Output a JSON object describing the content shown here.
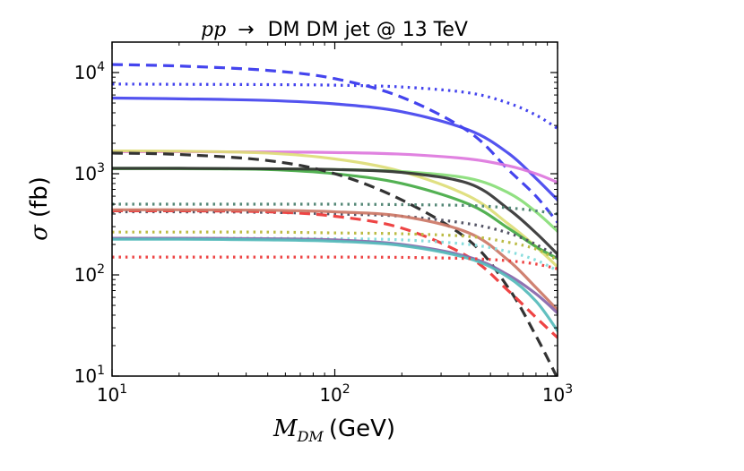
{
  "chart_data": {
    "type": "line",
    "title": {
      "math": "pp",
      "arrow": "→",
      "text": "DM DM jet  @ 13 TeV"
    },
    "xlabel": {
      "math": "M",
      "sub": "DM",
      "text": "(GeV)"
    },
    "ylabel": {
      "math": "σ",
      "text": "(fb)"
    },
    "xscale": "log",
    "yscale": "log",
    "xlim": [
      10,
      1000
    ],
    "ylim": [
      10,
      20000
    ],
    "xticks": [
      {
        "value": 10,
        "base": "10",
        "exp": "1"
      },
      {
        "value": 100,
        "base": "10",
        "exp": "2"
      },
      {
        "value": 1000,
        "base": "10",
        "exp": "3"
      }
    ],
    "yticks": [
      {
        "value": 10,
        "base": "10",
        "exp": "1"
      },
      {
        "value": 100,
        "base": "10",
        "exp": "2"
      },
      {
        "value": 1000,
        "base": "10",
        "exp": "3"
      },
      {
        "value": 10000,
        "base": "10",
        "exp": "4"
      }
    ],
    "series": [
      {
        "name": "blue-dotted",
        "color": "#4444ee",
        "style": "dotted",
        "x": [
          10,
          20,
          50,
          100,
          200,
          400,
          600,
          800,
          1000
        ],
        "y": [
          7700,
          7650,
          7600,
          7500,
          7200,
          6300,
          5000,
          3800,
          2800
        ]
      },
      {
        "name": "blue-dashed",
        "color": "#4444ee",
        "style": "dashed",
        "x": [
          10,
          20,
          50,
          100,
          200,
          400,
          600,
          800,
          1000
        ],
        "y": [
          12000,
          11600,
          10500,
          8700,
          5700,
          2600,
          1100,
          600,
          330
        ]
      },
      {
        "name": "blue-solid",
        "color": "#4444ee",
        "style": "solid",
        "x": [
          10,
          20,
          50,
          100,
          200,
          400,
          600,
          800,
          1000
        ],
        "y": [
          5600,
          5500,
          5300,
          4900,
          4100,
          2700,
          1600,
          900,
          550
        ]
      },
      {
        "name": "magenta-solid",
        "color": "#dd77dd",
        "style": "solid",
        "x": [
          10,
          20,
          50,
          100,
          200,
          400,
          600,
          800,
          1000
        ],
        "y": [
          1650,
          1650,
          1640,
          1620,
          1560,
          1400,
          1200,
          1000,
          820
        ]
      },
      {
        "name": "khaki-solid",
        "color": "#dddd77",
        "style": "solid",
        "x": [
          10,
          20,
          50,
          100,
          200,
          400,
          600,
          800,
          1000
        ],
        "y": [
          1680,
          1670,
          1600,
          1400,
          1050,
          600,
          320,
          190,
          120
        ]
      },
      {
        "name": "lightgreen-solid",
        "color": "#88dd77",
        "style": "solid",
        "x": [
          10,
          20,
          50,
          100,
          200,
          400,
          600,
          800,
          1000
        ],
        "y": [
          1120,
          1120,
          1110,
          1100,
          1050,
          900,
          650,
          420,
          270
        ]
      },
      {
        "name": "green-solid",
        "color": "#44aa44",
        "style": "solid",
        "x": [
          10,
          20,
          50,
          100,
          200,
          400,
          600,
          800,
          1000
        ],
        "y": [
          1130,
          1130,
          1100,
          1000,
          800,
          500,
          290,
          190,
          145
        ]
      },
      {
        "name": "black-dashed",
        "color": "#333333",
        "style": "dashed",
        "x": [
          10,
          20,
          50,
          100,
          200,
          400,
          600,
          800,
          1000
        ],
        "y": [
          1600,
          1550,
          1350,
          1000,
          550,
          220,
          75,
          25,
          9.5
        ]
      },
      {
        "name": "black-solid",
        "color": "#333333",
        "style": "solid",
        "x": [
          10,
          20,
          50,
          100,
          200,
          400,
          600,
          800,
          1000
        ],
        "y": [
          1130,
          1130,
          1120,
          1100,
          1030,
          800,
          450,
          260,
          160
        ]
      },
      {
        "name": "teal-dotted",
        "color": "#558877",
        "style": "dotted",
        "x": [
          10,
          20,
          50,
          100,
          200,
          400,
          600,
          800,
          1000
        ],
        "y": [
          500,
          500,
          500,
          500,
          495,
          485,
          460,
          430,
          400
        ]
      },
      {
        "name": "gray-dotted",
        "color": "#555566",
        "style": "dotted",
        "x": [
          10,
          20,
          50,
          100,
          200,
          400,
          600,
          800,
          1000
        ],
        "y": [
          420,
          420,
          415,
          400,
          380,
          320,
          260,
          200,
          150
        ]
      },
      {
        "name": "red-dashed",
        "color": "#ee4444",
        "style": "dashed",
        "x": [
          10,
          20,
          50,
          100,
          200,
          400,
          600,
          800,
          1000
        ],
        "y": [
          430,
          430,
          420,
          380,
          290,
          150,
          70,
          38,
          24
        ]
      },
      {
        "name": "salmon-solid",
        "color": "#cc7766",
        "style": "solid",
        "x": [
          10,
          20,
          50,
          100,
          200,
          400,
          600,
          800,
          1000
        ],
        "y": [
          440,
          440,
          435,
          420,
          380,
          260,
          140,
          75,
          45
        ]
      },
      {
        "name": "olive-dotted",
        "color": "#bbbb44",
        "style": "dotted",
        "x": [
          10,
          20,
          50,
          100,
          200,
          400,
          600,
          800,
          1000
        ],
        "y": [
          265,
          265,
          265,
          260,
          255,
          240,
          210,
          180,
          140
        ]
      },
      {
        "name": "cyan-dotted",
        "color": "#88dddd",
        "style": "dotted",
        "x": [
          10,
          20,
          50,
          100,
          200,
          400,
          600,
          800,
          1000
        ],
        "y": [
          230,
          230,
          230,
          228,
          222,
          200,
          170,
          140,
          110
        ]
      },
      {
        "name": "purple-solid",
        "color": "#8866aa",
        "style": "solid",
        "x": [
          10,
          20,
          50,
          100,
          200,
          400,
          600,
          800,
          1000
        ],
        "y": [
          230,
          230,
          228,
          222,
          200,
          150,
          100,
          65,
          42
        ]
      },
      {
        "name": "cyan-solid",
        "color": "#55bbbb",
        "style": "solid",
        "x": [
          10,
          20,
          50,
          100,
          200,
          400,
          600,
          800,
          1000
        ],
        "y": [
          225,
          225,
          222,
          215,
          195,
          145,
          95,
          55,
          28
        ]
      },
      {
        "name": "red-dotted",
        "color": "#ee4444",
        "style": "dotted",
        "x": [
          10,
          20,
          50,
          100,
          200,
          400,
          600,
          800,
          1000
        ],
        "y": [
          150,
          150,
          150,
          150,
          149,
          145,
          138,
          128,
          115
        ]
      }
    ]
  }
}
